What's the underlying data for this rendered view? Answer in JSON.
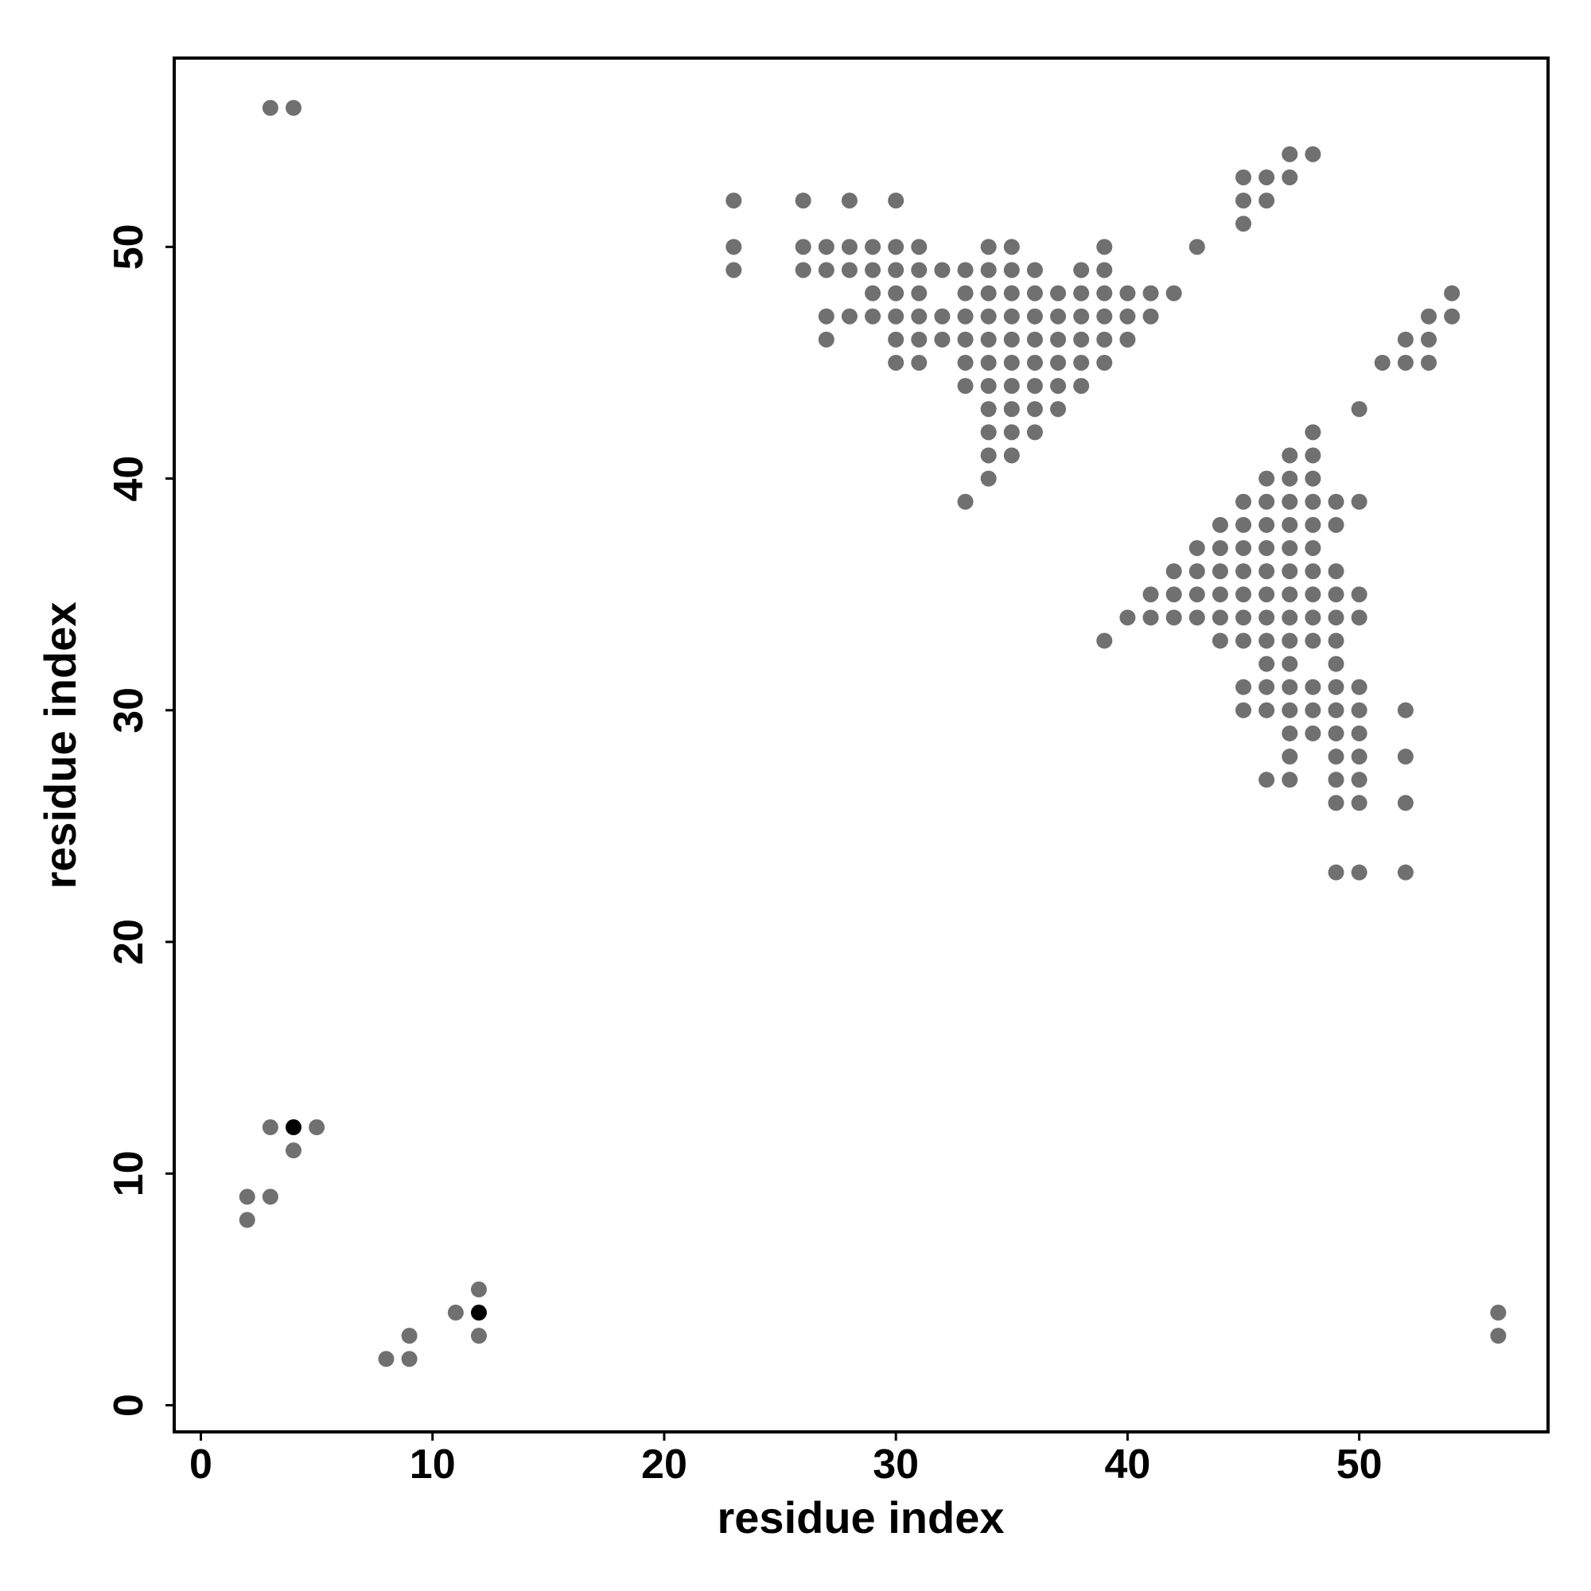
{
  "chart_data": {
    "type": "scatter",
    "xlabel": "residue index",
    "ylabel": "residue index",
    "xlim": [
      -1.15,
      58.15
    ],
    "ylim": [
      -1.15,
      58.15
    ],
    "xticks": [
      0,
      10,
      20,
      30,
      40,
      50
    ],
    "yticks": [
      0,
      10,
      20,
      30,
      40,
      50
    ],
    "series": [
      {
        "color": "#707070",
        "x": [
          3,
          4,
          3,
          5,
          4,
          2,
          3,
          2,
          12,
          11,
          56,
          9,
          12,
          56,
          8,
          9,
          47,
          48,
          45,
          46,
          47,
          23,
          26,
          28,
          30,
          45,
          46,
          45,
          23,
          26,
          27,
          28,
          29,
          30,
          31,
          34,
          35,
          39,
          43,
          23,
          26,
          27,
          28,
          29,
          30,
          31,
          32,
          33,
          34,
          35,
          36,
          38,
          39,
          29,
          30,
          31,
          33,
          34,
          35,
          36,
          37,
          38,
          39,
          40,
          41,
          42,
          54,
          27,
          28,
          29,
          30,
          31,
          32,
          33,
          34,
          35,
          36,
          37,
          38,
          39,
          40,
          41,
          53,
          54,
          27,
          30,
          31,
          32,
          33,
          34,
          35,
          36,
          37,
          38,
          39,
          40,
          52,
          53,
          30,
          31,
          33,
          34,
          35,
          36,
          37,
          38,
          39,
          51,
          52,
          53,
          33,
          34,
          35,
          36,
          37,
          38,
          34,
          35,
          36,
          37,
          50,
          34,
          35,
          36,
          48,
          34,
          35,
          47,
          48,
          34,
          46,
          47,
          48,
          33,
          45,
          46,
          47,
          48,
          49,
          50,
          44,
          45,
          46,
          47,
          48,
          49,
          43,
          44,
          45,
          46,
          47,
          48,
          42,
          43,
          44,
          45,
          46,
          47,
          48,
          49,
          41,
          42,
          43,
          44,
          45,
          46,
          47,
          48,
          49,
          50,
          40,
          41,
          42,
          43,
          44,
          45,
          46,
          47,
          48,
          49,
          50,
          39,
          44,
          45,
          46,
          47,
          48,
          49,
          46,
          47,
          49,
          45,
          46,
          47,
          48,
          49,
          50,
          45,
          46,
          47,
          48,
          49,
          50,
          52,
          47,
          48,
          49,
          50,
          47,
          49,
          50,
          52,
          46,
          47,
          49,
          50,
          49,
          50,
          52,
          49,
          50,
          52
        ],
        "values": [
          56,
          56,
          12,
          12,
          11,
          9,
          9,
          8,
          5,
          4,
          4,
          3,
          3,
          3,
          2,
          2,
          54,
          54,
          53,
          53,
          53,
          52,
          52,
          52,
          52,
          52,
          52,
          51,
          50,
          50,
          50,
          50,
          50,
          50,
          50,
          50,
          50,
          50,
          50,
          49,
          49,
          49,
          49,
          49,
          49,
          49,
          49,
          49,
          49,
          49,
          49,
          49,
          49,
          48,
          48,
          48,
          48,
          48,
          48,
          48,
          48,
          48,
          48,
          48,
          48,
          48,
          48,
          47,
          47,
          47,
          47,
          47,
          47,
          47,
          47,
          47,
          47,
          47,
          47,
          47,
          47,
          47,
          47,
          47,
          46,
          46,
          46,
          46,
          46,
          46,
          46,
          46,
          46,
          46,
          46,
          46,
          46,
          46,
          45,
          45,
          45,
          45,
          45,
          45,
          45,
          45,
          45,
          45,
          45,
          45,
          44,
          44,
          44,
          44,
          44,
          44,
          43,
          43,
          43,
          43,
          43,
          42,
          42,
          42,
          42,
          41,
          41,
          41,
          41,
          40,
          40,
          40,
          40,
          39,
          39,
          39,
          39,
          39,
          39,
          39,
          38,
          38,
          38,
          38,
          38,
          38,
          37,
          37,
          37,
          37,
          37,
          37,
          36,
          36,
          36,
          36,
          36,
          36,
          36,
          36,
          35,
          35,
          35,
          35,
          35,
          35,
          35,
          35,
          35,
          35,
          34,
          34,
          34,
          34,
          34,
          34,
          34,
          34,
          34,
          34,
          34,
          33,
          33,
          33,
          33,
          33,
          33,
          33,
          32,
          32,
          32,
          31,
          31,
          31,
          31,
          31,
          31,
          30,
          30,
          30,
          30,
          30,
          30,
          30,
          29,
          29,
          29,
          29,
          28,
          28,
          28,
          28,
          27,
          27,
          27,
          27,
          26,
          26,
          26,
          23,
          23,
          23
        ]
      },
      {
        "color": "#000000",
        "x": [
          4,
          12
        ],
        "values": [
          12,
          4
        ]
      }
    ]
  }
}
